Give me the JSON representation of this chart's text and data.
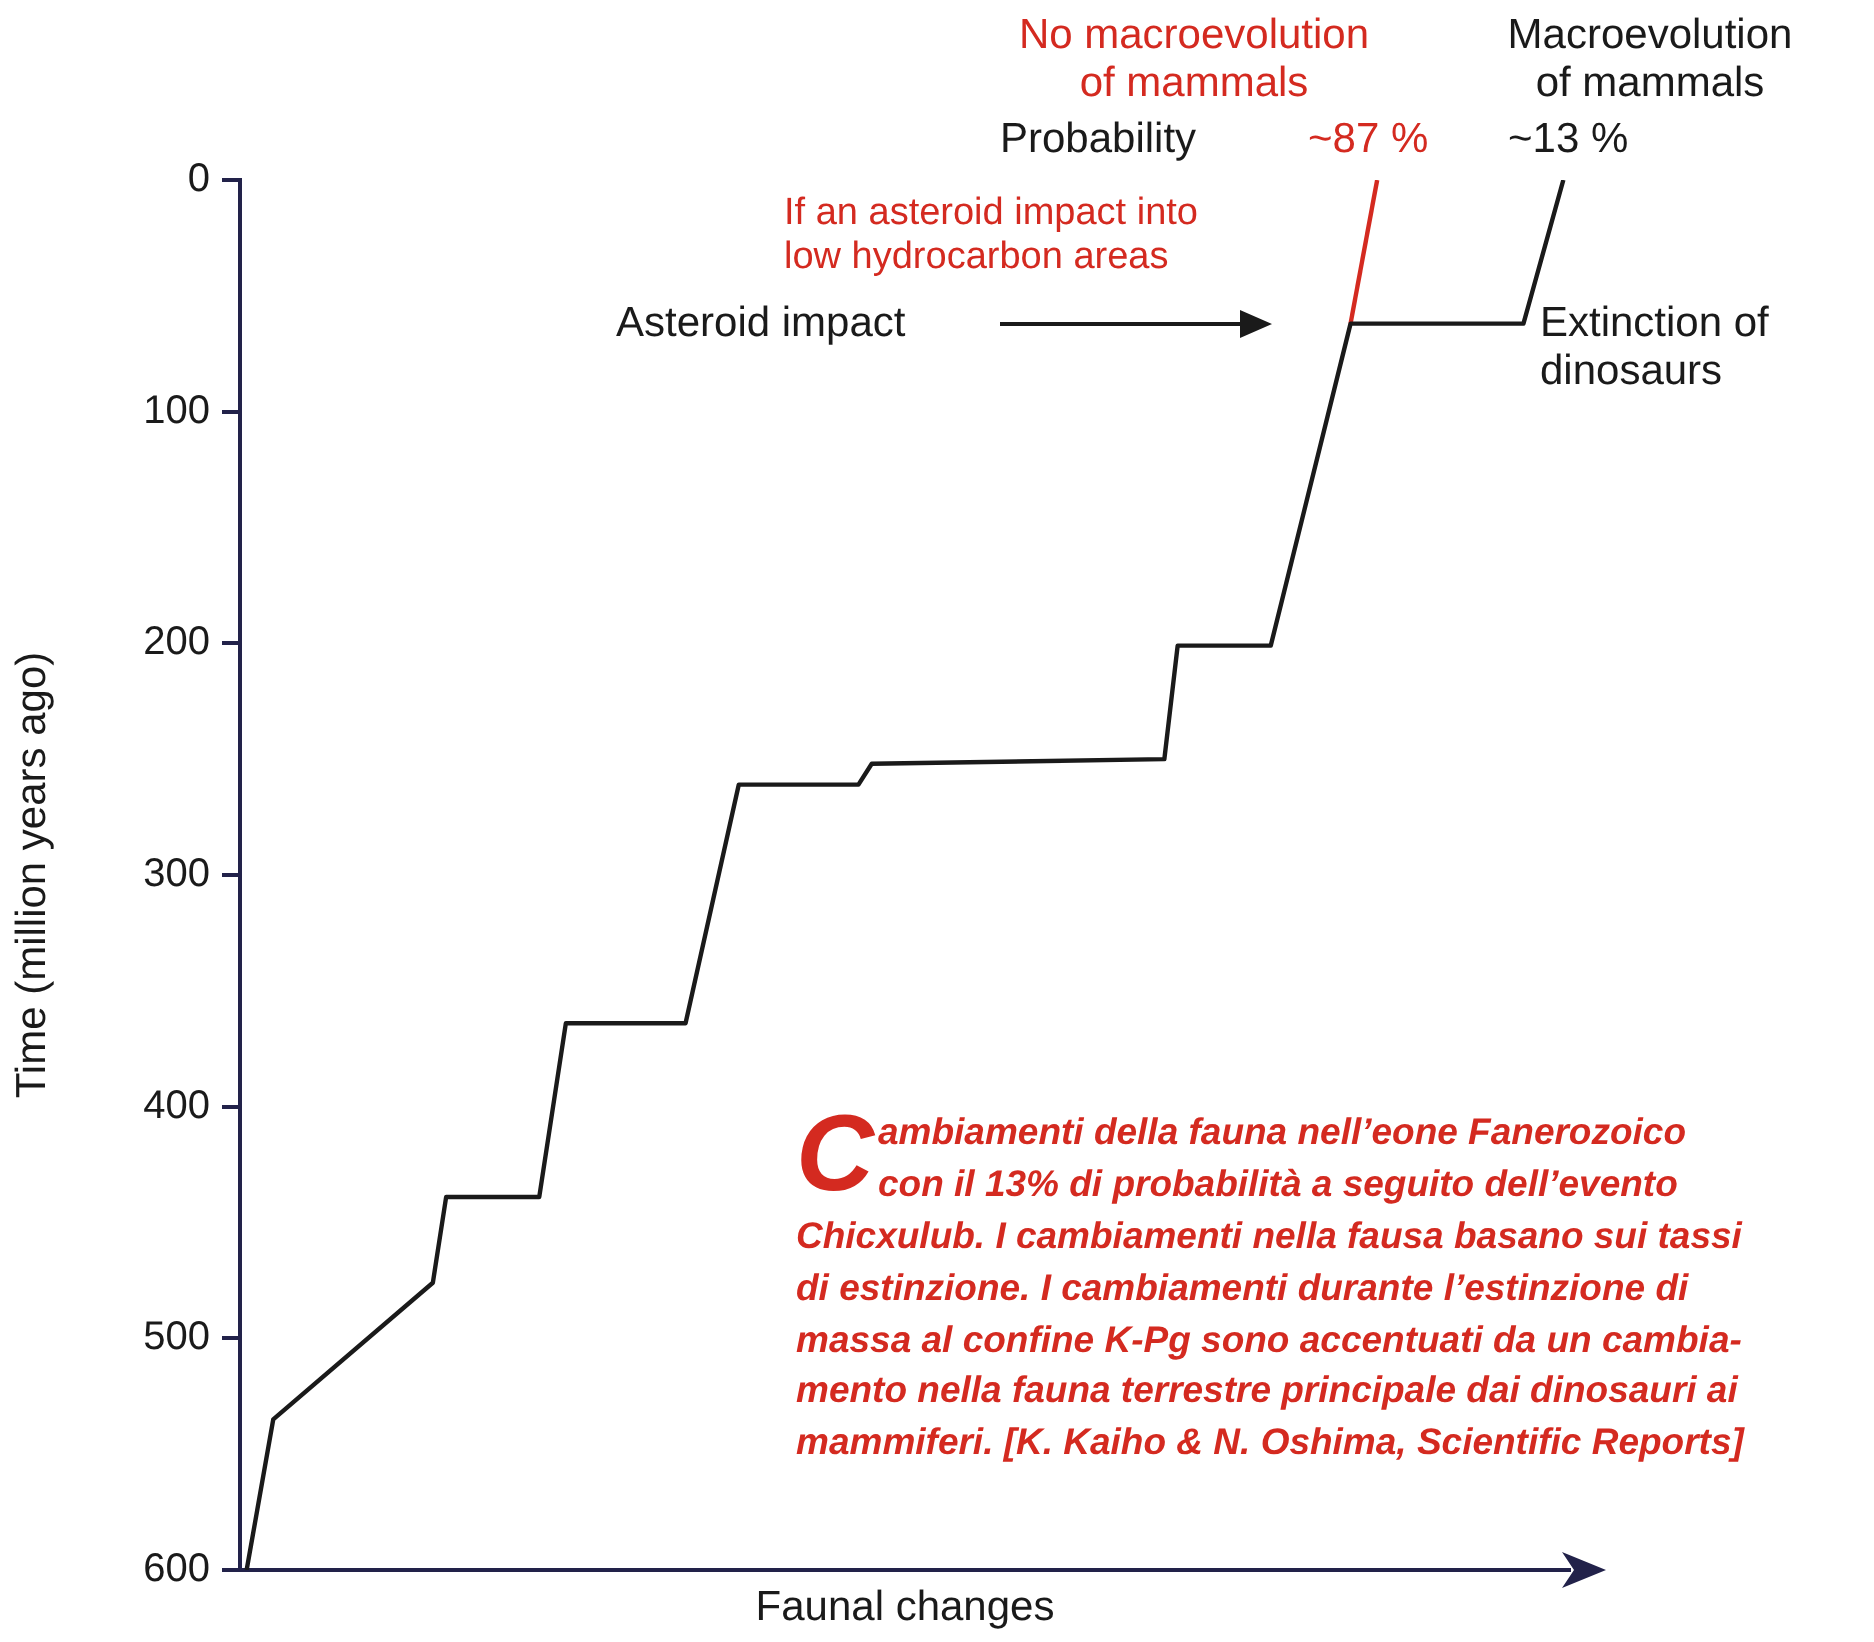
{
  "chart_data": {
    "type": "line",
    "xlabel": "Faunal changes",
    "ylabel": "Time (million years ago)",
    "categories": [
      null,
      null,
      null,
      null,
      null,
      null,
      null,
      null,
      null,
      null,
      null,
      null,
      null,
      null,
      null,
      null,
      null,
      null,
      null,
      null,
      null,
      null,
      null,
      null,
      null,
      null,
      null,
      null,
      null,
      null,
      null,
      null,
      null,
      null,
      null,
      null,
      null,
      null,
      null,
      null,
      null,
      null,
      null,
      null,
      null,
      null,
      null,
      null,
      null,
      null,
      null,
      null,
      null,
      null,
      null,
      null,
      null,
      null,
      null,
      null,
      null,
      null,
      null,
      null,
      null,
      null,
      null,
      null,
      null,
      null,
      null,
      null,
      null,
      null,
      null,
      null,
      null,
      null,
      null,
      null,
      null,
      null,
      null,
      null,
      null,
      null,
      null,
      null,
      null,
      null,
      null,
      null,
      null,
      null,
      null,
      null,
      null,
      null,
      null,
      null
    ],
    "ylim": [
      600,
      0
    ],
    "yticks": [
      0,
      100,
      200,
      300,
      400,
      500,
      600
    ],
    "tick_labels": "y",
    "grid": false,
    "marker": "none",
    "line_style": "solid",
    "series": [
      {
        "color": "#1a1a1a",
        "values": [
          600,
          null,
          535,
          null,
          null,
          null,
          null,
          null,
          null,
          null,
          null,
          null,
          null,
          null,
          476,
          439,
          null,
          null,
          null,
          null,
          null,
          null,
          439,
          null,
          364,
          null,
          null,
          null,
          null,
          null,
          null,
          null,
          null,
          364,
          null,
          null,
          null,
          261,
          null,
          null,
          null,
          null,
          null,
          null,
          null,
          null,
          261,
          252,
          null,
          null,
          null,
          null,
          null,
          null,
          null,
          null,
          null,
          null,
          null,
          null,
          null,
          null,
          null,
          null,
          null,
          null,
          null,
          null,
          null,
          250,
          201,
          null,
          null,
          null,
          null,
          null,
          null,
          201,
          null,
          null,
          null,
          null,
          null,
          62,
          null,
          null,
          null,
          null,
          null,
          null,
          null,
          null,
          null,
          null,
          null,
          null,
          62,
          null,
          null,
          0
        ]
      },
      {
        "color": "#d42a20",
        "values": [
          null,
          null,
          null,
          null,
          null,
          null,
          null,
          null,
          null,
          null,
          null,
          null,
          null,
          null,
          null,
          null,
          null,
          null,
          null,
          null,
          null,
          null,
          null,
          null,
          null,
          null,
          null,
          null,
          null,
          null,
          null,
          null,
          null,
          null,
          null,
          null,
          null,
          null,
          null,
          null,
          null,
          null,
          null,
          null,
          null,
          null,
          null,
          null,
          null,
          null,
          null,
          null,
          null,
          null,
          null,
          null,
          null,
          null,
          null,
          null,
          null,
          null,
          null,
          null,
          null,
          null,
          null,
          null,
          null,
          null,
          null,
          null,
          null,
          null,
          null,
          null,
          null,
          null,
          null,
          null,
          null,
          null,
          null,
          62,
          null,
          0,
          null,
          null,
          null,
          null,
          null,
          null,
          null,
          null,
          null,
          null,
          null,
          null,
          null,
          null
        ]
      }
    ],
    "annotations": [
      "No macroevolution\nof mammals",
      "Macroevolution\nof mammals",
      "Probability",
      "~87 %",
      "~13 %",
      "If an asteroid impact into\nlow hydrocarbon areas",
      "Asteroid impact",
      "Extinction of\ndinosaurs",
      "Cambiamenti della fauna nell’eone Fanerozoico\ncon il 13% di probabilità a seguito dell’evento\nChicxulub. I cambiamenti nella fausa basano sui tassi\ndi estinzione. I cambiamenti durante l’estinzione di\nmassa al confine K-Pg sono accentuati da un cambia-\nmento nella fauna terrestre principale dai dinosauri ai\nmammiferi. [K. Kaiho & N. Oshima, Scientific Reports]"
    ]
  }
}
